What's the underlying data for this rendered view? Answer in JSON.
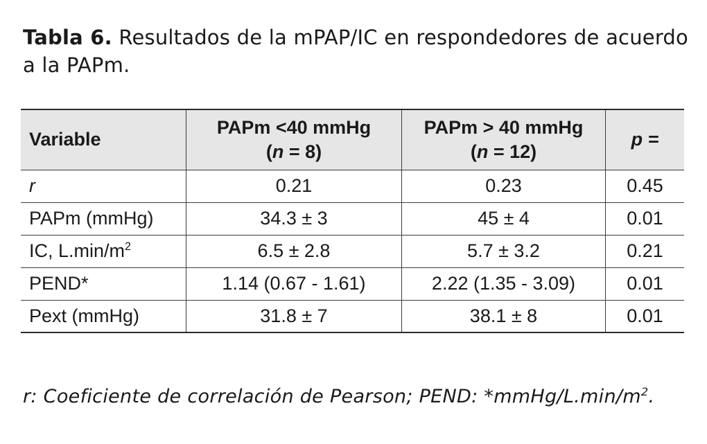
{
  "caption": {
    "label": "Tabla 6.",
    "text": "Resultados de la mPAP/IC en respondedores de acuerdo a la PAPm."
  },
  "table": {
    "headers": {
      "variable": "Variable",
      "group1_line1": "PAPm <40 mmHg",
      "group1_n_open": "(",
      "group1_n_symbol": "n",
      "group1_n_rest": " = 8)",
      "group2_line1": "PAPm > 40 mmHg",
      "group2_n_open": "(",
      "group2_n_symbol": "n",
      "group2_n_rest": " = 12)",
      "p": "p ="
    },
    "rows": [
      {
        "variable": "r",
        "g1": "0.21",
        "g2": "0.23",
        "p": "0.45"
      },
      {
        "variable": "PAPm (mmHg)",
        "g1": "34.3 ± 3",
        "g2": "45 ± 4",
        "p": "0.01"
      },
      {
        "variable": "IC, L.min/m",
        "variable_sup": "2",
        "g1": "6.5 ± 2.8",
        "g2": "5.7 ± 3.2",
        "p": "0.21"
      },
      {
        "variable": "PEND*",
        "g1": "1.14 (0.67 - 1.61)",
        "g2": "2.22 (1.35 - 3.09)",
        "p": "0.01"
      },
      {
        "variable": "Pext (mmHg)",
        "g1": "31.8 ± 7",
        "g2": "38.1 ± 8",
        "p": "0.01"
      }
    ]
  },
  "footnote": {
    "text": "r: Coeficiente de correlación de Pearson; PEND: *mmHg/L.min/m",
    "sup": "2",
    "end": "."
  }
}
